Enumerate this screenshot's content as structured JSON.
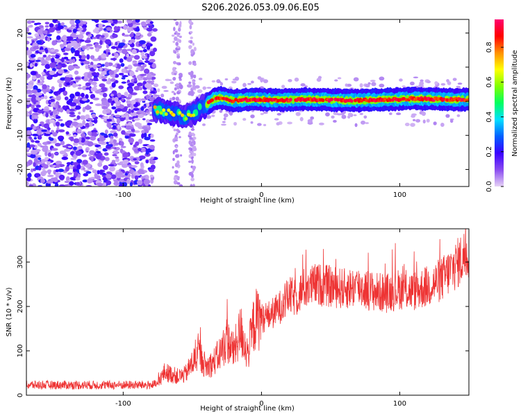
{
  "title": "S206.2026.053.09.06.E05",
  "chart_data": [
    {
      "type": "heatmap",
      "xlabel": "Height of straight line (km)",
      "ylabel": "Frequency (Hz)",
      "xlim": [
        -170,
        150
      ],
      "ylim": [
        -25,
        24
      ],
      "x_ticks": [
        "-100",
        "0",
        "100"
      ],
      "x_tick_values": [
        -100,
        0,
        100
      ],
      "y_ticks": [
        "-20",
        "-10",
        "0",
        "10",
        "20"
      ],
      "y_tick_values": [
        -20,
        -10,
        0,
        10,
        20
      ],
      "colorbar": {
        "label": "Normalized spectral amplitude",
        "ticks": [
          "0.0",
          "0.2",
          "0.4",
          "0.6",
          "0.8"
        ],
        "tick_values": [
          0.0,
          0.2,
          0.4,
          0.6,
          0.8
        ],
        "range": [
          0,
          0.96
        ],
        "colors": [
          "#e6d2f5",
          "#8a4cf0",
          "#3a00ff",
          "#0060ff",
          "#00e0ff",
          "#00ff60",
          "#80ff00",
          "#ffff00",
          "#ff9000",
          "#ff0000",
          "#ff0070"
        ]
      },
      "signal_trace": {
        "x": [
          -75,
          -70,
          -65,
          -60,
          -55,
          -50,
          -45,
          -40,
          -35,
          -30,
          -20,
          -10,
          0,
          10,
          20,
          30,
          40,
          50,
          60,
          70,
          80,
          90,
          100,
          110,
          120,
          130,
          140,
          150
        ],
        "y": [
          -2.5,
          -3.0,
          -3.5,
          -4.0,
          -4.5,
          -3.5,
          -2.5,
          -1.0,
          0.5,
          1.0,
          0.2,
          0.5,
          0.5,
          0.3,
          0.4,
          0.6,
          0.5,
          0.4,
          0.3,
          0.2,
          0.4,
          0.5,
          0.6,
          0.8,
          0.7,
          0.6,
          0.5,
          0.5
        ]
      }
    },
    {
      "type": "line",
      "xlabel": "Height of straight line (km)",
      "ylabel": "SNR (10 * v/v)",
      "xlim": [
        -170,
        150
      ],
      "ylim": [
        0,
        375
      ],
      "x_ticks": [
        "-100",
        "0",
        "100"
      ],
      "x_tick_values": [
        -100,
        0,
        100
      ],
      "y_ticks": [
        "0",
        "100",
        "200",
        "300"
      ],
      "y_tick_values": [
        0,
        100,
        200,
        300
      ],
      "color": "#ee3333",
      "series": [
        {
          "x": [
            -170,
            -150,
            -130,
            -110,
            -90,
            -80,
            -75,
            -70,
            -65,
            -60,
            -55,
            -50,
            -45,
            -40,
            -35,
            -30,
            -25,
            -20,
            -15,
            -10,
            -5,
            0,
            5,
            10,
            15,
            20,
            25,
            30,
            40,
            50,
            60,
            70,
            80,
            90,
            100,
            110,
            120,
            130,
            140,
            150
          ],
          "values": [
            22,
            22,
            22,
            22,
            22,
            22,
            24,
            50,
            45,
            40,
            45,
            70,
            90,
            60,
            70,
            90,
            120,
            95,
            140,
            90,
            160,
            170,
            175,
            185,
            200,
            220,
            215,
            235,
            245,
            240,
            235,
            240,
            230,
            225,
            235,
            230,
            240,
            255,
            285,
            320
          ]
        }
      ]
    }
  ]
}
